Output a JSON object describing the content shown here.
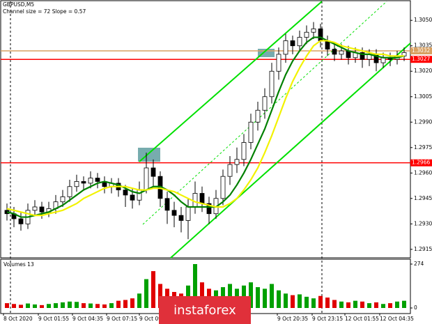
{
  "chart_data": {
    "type": "candlestick",
    "title": "GBPUSD,M5",
    "subtitle": "Channel size = 72 Slope = 0.57",
    "up_color": "#ffffff",
    "down_color": "#000000",
    "open": [
      1.2938,
      1.2936,
      1.2933,
      1.293,
      1.2938,
      1.294,
      1.2937,
      1.2939,
      1.2943,
      1.2946,
      1.2952,
      1.2955,
      1.2954,
      1.2957,
      1.2955,
      1.2952,
      1.2954,
      1.295,
      1.2947,
      1.2944,
      1.295,
      1.2963,
      1.2958,
      1.2945,
      1.2938,
      1.2935,
      1.2932,
      1.294,
      1.2948,
      1.2942,
      1.2936,
      1.2945,
      1.2958,
      1.2965,
      1.2968,
      1.2978,
      1.299,
      1.2997,
      1.3005,
      1.302,
      1.303,
      1.3038,
      1.3035,
      1.304,
      1.3043,
      1.3045,
      1.3038,
      1.3033,
      1.303,
      1.3032,
      1.3028,
      1.3031,
      1.3027,
      1.303,
      1.3025,
      1.3028,
      1.3027,
      1.3029
    ],
    "high": [
      1.2942,
      1.294,
      1.2937,
      1.2942,
      1.2944,
      1.2943,
      1.2943,
      1.2947,
      1.295,
      1.2956,
      1.2959,
      1.2958,
      1.2961,
      1.296,
      1.2958,
      1.2957,
      1.2957,
      1.2953,
      1.2951,
      1.2955,
      1.2972,
      1.2968,
      1.2961,
      1.2949,
      1.2943,
      1.294,
      1.2945,
      1.2955,
      1.2952,
      1.2946,
      1.295,
      1.2962,
      1.297,
      1.2975,
      1.2983,
      1.2995,
      1.3002,
      1.301,
      1.3025,
      1.3034,
      1.3042,
      1.3041,
      1.3044,
      1.3047,
      1.3049,
      1.3048,
      1.3041,
      1.3036,
      1.3036,
      1.3035,
      1.3034,
      1.3034,
      1.3033,
      1.3033,
      1.3031,
      1.3031,
      1.3032,
      1.3034
    ],
    "low": [
      1.2932,
      1.2928,
      1.2926,
      1.2927,
      1.2935,
      1.2933,
      1.2934,
      1.2936,
      1.294,
      1.2943,
      1.2949,
      1.295,
      1.2951,
      1.2951,
      1.2948,
      1.2948,
      1.2946,
      1.294,
      1.2939,
      1.2941,
      1.2948,
      1.2952,
      1.294,
      1.293,
      1.2928,
      1.2925,
      1.2921,
      1.2936,
      1.2937,
      1.293,
      1.2933,
      1.2941,
      1.2953,
      1.296,
      1.2964,
      1.2974,
      1.2985,
      1.2992,
      1.3001,
      1.3015,
      1.3025,
      1.303,
      1.3032,
      1.3036,
      1.3039,
      1.3034,
      1.3029,
      1.3026,
      1.3027,
      1.3024,
      1.3025,
      1.3022,
      1.3023,
      1.302,
      1.3022,
      1.3023,
      1.3024,
      1.3026
    ],
    "close": [
      1.2936,
      1.2933,
      1.293,
      1.2938,
      1.294,
      1.2937,
      1.2939,
      1.2943,
      1.2946,
      1.2952,
      1.2955,
      1.2954,
      1.2957,
      1.2955,
      1.2952,
      1.2954,
      1.295,
      1.2947,
      1.2944,
      1.295,
      1.2963,
      1.2958,
      1.2945,
      1.2938,
      1.2935,
      1.2932,
      1.294,
      1.2948,
      1.2942,
      1.2936,
      1.2945,
      1.2958,
      1.2965,
      1.2968,
      1.2978,
      1.299,
      1.2997,
      1.3005,
      1.302,
      1.303,
      1.3038,
      1.3035,
      1.304,
      1.3043,
      1.3045,
      1.3038,
      1.3033,
      1.303,
      1.3032,
      1.3028,
      1.3031,
      1.3027,
      1.303,
      1.3025,
      1.3028,
      1.3027,
      1.3029,
      1.3031
    ],
    "series": [
      {
        "color": "#008000",
        "values": [
          1.2937,
          1.2936,
          1.2934,
          1.2934,
          1.2935,
          1.2936,
          1.2937,
          1.2939,
          1.2941,
          1.2944,
          1.2947,
          1.295,
          1.2952,
          1.2954,
          1.2955,
          1.2954,
          1.2953,
          1.2951,
          1.2949,
          1.2948,
          1.295,
          1.2952,
          1.2952,
          1.295,
          1.2947,
          1.2943,
          1.294,
          1.294,
          1.294,
          1.294,
          1.294,
          1.2943,
          1.2947,
          1.2953,
          1.296,
          1.2968,
          1.2977,
          1.2986,
          1.2997,
          1.3008,
          1.3018,
          1.3026,
          1.3032,
          1.3037,
          1.304,
          1.304,
          1.3038,
          1.3036,
          1.3034,
          1.3032,
          1.3031,
          1.303,
          1.303,
          1.3029,
          1.3028,
          1.3028,
          1.3028,
          1.3029
        ]
      },
      {
        "color": "#f2f200",
        "values": [
          1.2939,
          1.2938,
          1.2937,
          1.2936,
          1.2935,
          1.2935,
          1.2936,
          1.2937,
          1.2938,
          1.294,
          1.2942,
          1.2945,
          1.2947,
          1.2949,
          1.2951,
          1.2952,
          1.2952,
          1.2952,
          1.2951,
          1.295,
          1.295,
          1.2951,
          1.2951,
          1.295,
          1.2949,
          1.2947,
          1.2945,
          1.2943,
          1.2942,
          1.2941,
          1.294,
          1.294,
          1.2942,
          1.2945,
          1.295,
          1.2956,
          1.2963,
          1.2972,
          1.2982,
          1.2993,
          1.3004,
          1.3014,
          1.3022,
          1.3029,
          1.3035,
          1.3038,
          1.3038,
          1.3037,
          1.3035,
          1.3034,
          1.3033,
          1.3032,
          1.3031,
          1.303,
          1.303,
          1.3029,
          1.3029,
          1.3029
        ]
      }
    ],
    "levels": [
      {
        "value": 1.2966,
        "color": "#ff0000"
      },
      {
        "value": 1.3027,
        "color": "#ff0000"
      },
      {
        "value": 1.3032,
        "color": "#d8a060"
      }
    ],
    "xlim": [
      0,
      58
    ],
    "xticks": [
      {
        "value": 0,
        "label": "8 Oct 2020"
      },
      {
        "value": 5,
        "label": "9 Oct 01:55"
      },
      {
        "value": 9.9,
        "label": "9 Oct 04:35"
      },
      {
        "value": 14.8,
        "label": "9 Oct 07:15"
      },
      {
        "value": 19.5,
        "label": "9 Oct 09:55"
      },
      {
        "value": 39.3,
        "label": "9 Oct 20:35"
      },
      {
        "value": 44.3,
        "label": "9 Oct 23:15"
      },
      {
        "value": 49,
        "label": "12 Oct 01:55"
      },
      {
        "value": 54,
        "label": "12 Oct 04:35"
      }
    ],
    "ylim": [
      1.291,
      1.3062
    ],
    "yticks": [
      {
        "value": 1.305,
        "label": "1.3050"
      },
      1.3035,
      {
        "value": 1.302,
        "label": "1.3020"
      },
      1.3005,
      {
        "value": 1.299,
        "label": "1.2990"
      },
      1.2975,
      {
        "value": 1.296,
        "label": "1.2960"
      },
      1.2945,
      {
        "value": 1.293,
        "label": "1.2930"
      },
      1.2915
    ],
    "volume_title": "Volumes 13",
    "volume_up_color": "#00a000",
    "volume_down_color": "#e00000",
    "volumes": [
      30,
      25,
      20,
      28,
      22,
      18,
      25,
      30,
      35,
      40,
      38,
      30,
      28,
      25,
      22,
      30,
      45,
      50,
      60,
      90,
      180,
      230,
      150,
      120,
      100,
      90,
      140,
      274,
      160,
      120,
      110,
      130,
      150,
      120,
      140,
      160,
      130,
      120,
      150,
      110,
      90,
      80,
      85,
      70,
      60,
      75,
      65,
      50,
      40,
      35,
      45,
      40,
      30,
      35,
      25,
      30,
      40,
      45
    ],
    "volume_ylim": [
      0,
      274
    ],
    "volume_yticks": [
      274,
      0
    ],
    "watermark": "instaforex"
  }
}
